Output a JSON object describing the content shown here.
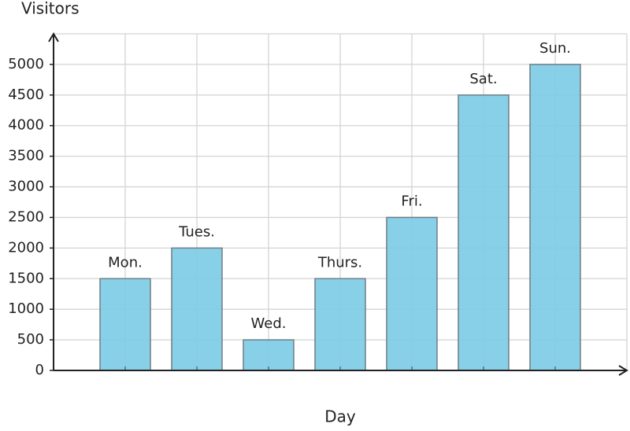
{
  "chart_data": {
    "type": "bar",
    "x_label": "Day",
    "y_label": "Visitors",
    "categories": [
      "Mon.",
      "Tues.",
      "Wed.",
      "Thurs.",
      "Fri.",
      "Sat.",
      "Sun."
    ],
    "values": [
      1500,
      2000,
      500,
      1500,
      2500,
      4500,
      5000
    ],
    "color": "#7ecbe6",
    "ylim": [
      0,
      5500
    ],
    "yticks": [
      0,
      500,
      1000,
      1500,
      2000,
      2500,
      3000,
      3500,
      4000,
      4500,
      5000
    ],
    "grid": true
  }
}
